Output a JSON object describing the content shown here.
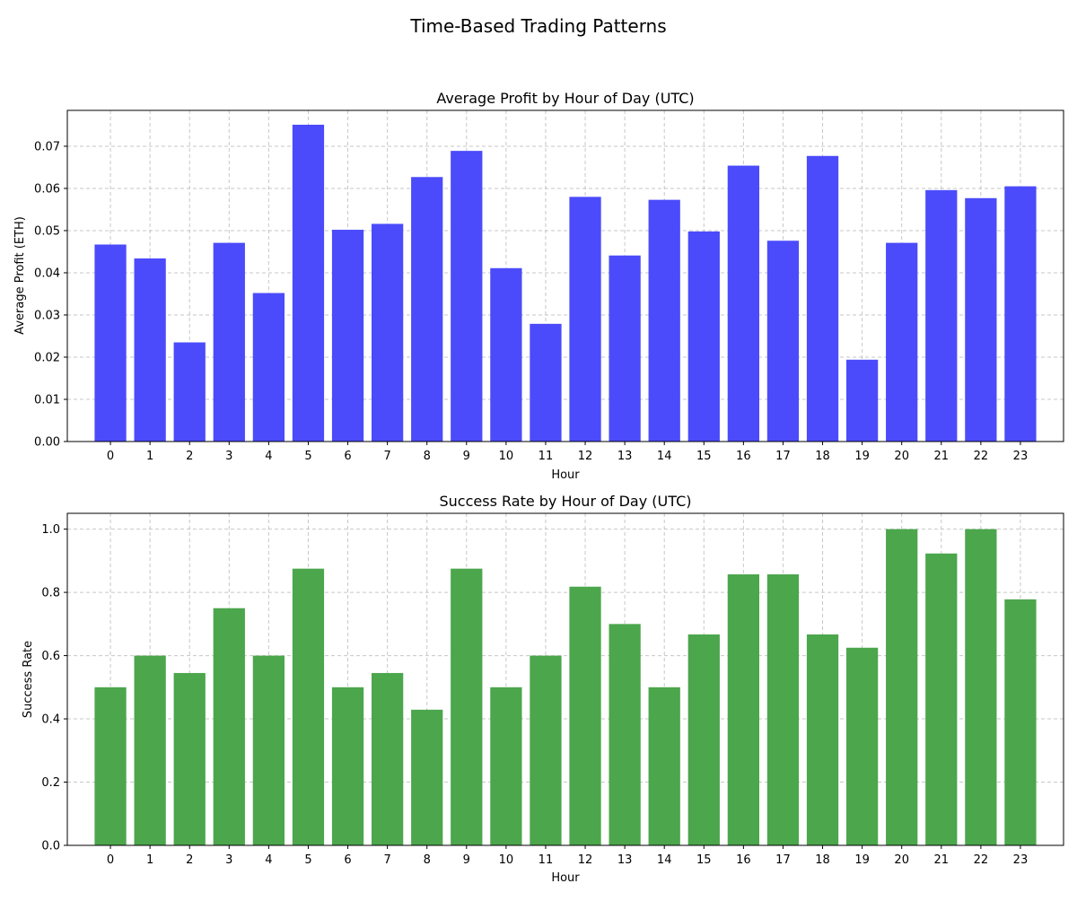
{
  "figure": {
    "title": "Time-Based Trading Patterns"
  },
  "chart_data": [
    {
      "type": "bar",
      "title": "Average Profit by Hour of Day (UTC)",
      "xlabel": "Hour",
      "ylabel": "Average Profit (ETH)",
      "categories": [
        "0",
        "1",
        "2",
        "3",
        "4",
        "5",
        "6",
        "7",
        "8",
        "9",
        "10",
        "11",
        "12",
        "13",
        "14",
        "15",
        "16",
        "17",
        "18",
        "19",
        "20",
        "21",
        "22",
        "23"
      ],
      "values": [
        0.0467,
        0.0434,
        0.0235,
        0.0471,
        0.0352,
        0.0751,
        0.0502,
        0.0516,
        0.0627,
        0.0689,
        0.0411,
        0.0279,
        0.058,
        0.0441,
        0.0573,
        0.0498,
        0.0654,
        0.0476,
        0.0677,
        0.0194,
        0.0471,
        0.0596,
        0.0577,
        0.0605
      ],
      "ylim": [
        0,
        0.0785
      ],
      "yticks": [
        "0.00",
        "0.01",
        "0.02",
        "0.03",
        "0.04",
        "0.05",
        "0.06",
        "0.07"
      ],
      "color": "#4b4bfb",
      "grid": true
    },
    {
      "type": "bar",
      "title": "Success Rate by Hour of Day (UTC)",
      "xlabel": "Hour",
      "ylabel": "Success Rate",
      "categories": [
        "0",
        "1",
        "2",
        "3",
        "4",
        "5",
        "6",
        "7",
        "8",
        "9",
        "10",
        "11",
        "12",
        "13",
        "14",
        "15",
        "16",
        "17",
        "18",
        "19",
        "20",
        "21",
        "22",
        "23"
      ],
      "values": [
        0.5,
        0.6,
        0.545,
        0.75,
        0.6,
        0.875,
        0.5,
        0.545,
        0.429,
        0.875,
        0.5,
        0.6,
        0.818,
        0.7,
        0.5,
        0.667,
        0.857,
        0.857,
        0.667,
        0.625,
        1.0,
        0.923,
        1.0,
        0.778
      ],
      "ylim": [
        0,
        1.05
      ],
      "yticks": [
        "0.0",
        "0.2",
        "0.4",
        "0.6",
        "0.8",
        "1.0"
      ],
      "color": "#4ca64c",
      "grid": true
    }
  ]
}
